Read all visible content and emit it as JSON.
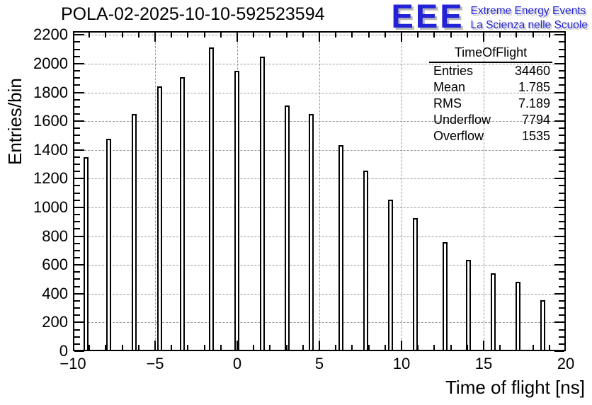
{
  "page": {
    "background": "#ffffff"
  },
  "header": {
    "title": "POLA-02-2025-10-10-592523594",
    "logo": {
      "acronym": "EEE",
      "line1": "Extreme Energy Events",
      "line2": "La Scienza nelle Scuole",
      "color": "#2222d6",
      "shadow_color": "#b8b8b8"
    }
  },
  "stats_box": {
    "title": "TimeOfFlight",
    "rows": [
      {
        "label": "Entries",
        "value": "34460"
      },
      {
        "label": "Mean",
        "value": "1.785"
      },
      {
        "label": "RMS",
        "value": "7.189"
      },
      {
        "label": "Underflow",
        "value": "7794"
      },
      {
        "label": "Overflow",
        "value": "1535"
      }
    ]
  },
  "chart_data": {
    "type": "bar",
    "title": "POLA-02-2025-10-10-592523594",
    "xlabel": "Time of flight [ns]",
    "ylabel": "Entries/bin",
    "xlim": [
      -10,
      20
    ],
    "ylim": [
      0,
      2226
    ],
    "grid": true,
    "x_major_ticks": [
      -10,
      -5,
      0,
      5,
      10,
      15,
      20
    ],
    "x_tick_labels": [
      "−10",
      "−5",
      "0",
      "5",
      "10",
      "15",
      "20"
    ],
    "x_minor_step": 1,
    "y_major_ticks": [
      0,
      200,
      400,
      600,
      800,
      1000,
      1200,
      1400,
      1600,
      1800,
      2000,
      2200
    ],
    "y_tick_labels": [
      "0",
      "200",
      "400",
      "600",
      "800",
      "1000",
      "1200",
      "1400",
      "1600",
      "1800",
      "2000",
      "2200"
    ],
    "y_minor_step": 50,
    "x": [
      -9.22,
      -7.81,
      -6.27,
      -4.73,
      -3.32,
      -1.56,
      -0.03,
      1.51,
      3.05,
      4.52,
      6.33,
      7.82,
      9.32,
      10.84,
      12.64,
      14.07,
      15.57,
      17.08,
      18.6
    ],
    "values": [
      1350,
      1477,
      1652,
      1842,
      1908,
      2113,
      1951,
      2048,
      1711,
      1650,
      1432,
      1258,
      1056,
      924,
      756,
      633,
      543,
      484,
      356
    ]
  },
  "colors": {
    "axis": "#000000",
    "grid": "#9a9a9a",
    "bar_fill": "#ffffff",
    "bar_border": "#000000"
  }
}
